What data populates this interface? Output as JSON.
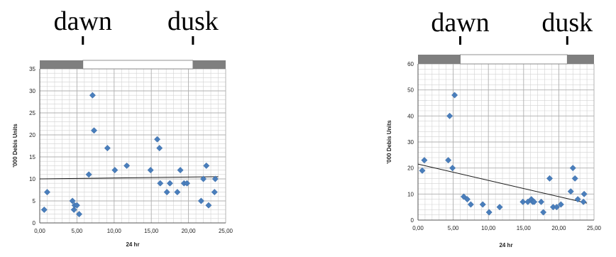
{
  "colors": {
    "marker": "#4a7ebb",
    "grid_major": "#b0b0b0",
    "grid_minor": "#d2d2d2",
    "night_bar": "#7f7f7f",
    "day_bar": "#ffffff",
    "trend": "#1a1a1a"
  },
  "chart_data": [
    {
      "type": "scatter",
      "title": "",
      "xlabel": "24 hr",
      "ylabel": "'000 Debis Units",
      "xlim": [
        0,
        25
      ],
      "ylim": [
        0,
        35
      ],
      "xticks": [
        0,
        5,
        10,
        15,
        20,
        25
      ],
      "yticks": [
        0,
        5,
        10,
        15,
        20,
        25,
        30,
        35
      ],
      "xtick_labels": [
        "0,00",
        "5,00",
        "10,00",
        "15,00",
        "20,00",
        "25,00"
      ],
      "ytick_labels": [
        "0",
        "5",
        "10",
        "15",
        "20",
        "25",
        "30",
        "35"
      ],
      "grid": true,
      "dawn_label": "dawn",
      "dusk_label": "dusk",
      "dawn_hour": 5.8,
      "dusk_hour": 20.6,
      "x": [
        0.6,
        1.0,
        4.4,
        4.6,
        4.7,
        5.0,
        5.3,
        6.6,
        7.1,
        7.3,
        9.1,
        10.1,
        11.7,
        14.9,
        15.8,
        16.1,
        16.2,
        17.1,
        17.5,
        18.5,
        18.9,
        19.4,
        19.8,
        21.7,
        22.0,
        22.4,
        22.7,
        23.5,
        23.6
      ],
      "y": [
        3,
        7,
        5,
        3,
        4,
        4,
        2,
        11,
        29,
        21,
        17,
        12,
        13,
        12,
        19,
        17,
        9,
        7,
        9,
        7,
        12,
        9,
        9,
        5,
        10,
        13,
        4,
        7,
        10
      ],
      "trendline": {
        "x": [
          0,
          24
        ],
        "y": [
          10,
          10.5
        ]
      }
    },
    {
      "type": "scatter",
      "title": "",
      "xlabel": "24 hr",
      "ylabel": "'000 Debis Units",
      "xlim": [
        0,
        25
      ],
      "ylim": [
        0,
        60
      ],
      "xticks": [
        0,
        5,
        10,
        15,
        20,
        25
      ],
      "yticks": [
        0,
        10,
        20,
        30,
        40,
        50,
        60
      ],
      "xtick_labels": [
        "0,00",
        "5,00",
        "10,00",
        "15,00",
        "20,00",
        "25,00"
      ],
      "ytick_labels": [
        "0",
        "10",
        "20",
        "30",
        "40",
        "50",
        "60"
      ],
      "grid": true,
      "dawn_label": "dawn",
      "dusk_label": "dusk",
      "dawn_hour": 6.0,
      "dusk_hour": 21.2,
      "x": [
        0.6,
        0.9,
        4.3,
        4.5,
        4.9,
        5.2,
        6.5,
        7.0,
        7.5,
        9.2,
        10.1,
        11.6,
        14.9,
        15.6,
        16.1,
        16.3,
        16.5,
        17.5,
        17.8,
        18.7,
        19.2,
        19.7,
        20.3,
        21.7,
        22.0,
        22.3,
        22.7,
        23.5,
        23.6
      ],
      "y": [
        19,
        23,
        23,
        40,
        20,
        48,
        9,
        8,
        6,
        6,
        3,
        5,
        7,
        7,
        8,
        7,
        7,
        7,
        3,
        16,
        5,
        5,
        6,
        11,
        20,
        16,
        8,
        7,
        10
      ],
      "trendline": {
        "x": [
          0,
          24
        ],
        "y": [
          21.5,
          6.5
        ]
      }
    }
  ]
}
